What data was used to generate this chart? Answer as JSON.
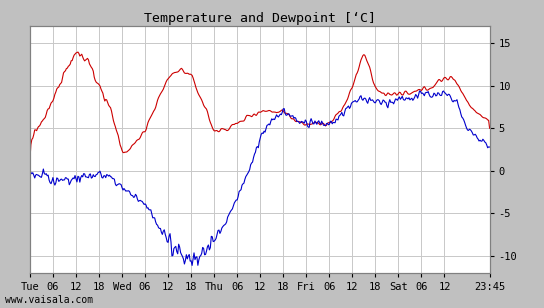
{
  "title": "Temperature and Dewpoint [‘C]",
  "bg_color": "#c0c0c0",
  "plot_bg_color": "#ffffff",
  "grid_color": "#c8c8c8",
  "temp_color": "#cc0000",
  "dewp_color": "#0000cc",
  "line_width": 0.8,
  "ylim": [
    -12,
    17
  ],
  "yticks": [
    -10,
    -5,
    0,
    5,
    10,
    15
  ],
  "xtick_labels": [
    "Tue",
    "06",
    "12",
    "18",
    "Wed",
    "06",
    "12",
    "18",
    "Thu",
    "06",
    "12",
    "18",
    "Fri",
    "06",
    "12",
    "18",
    "Sat",
    "06",
    "12",
    "23:45"
  ],
  "xtick_pos": [
    0,
    6,
    12,
    18,
    24,
    30,
    36,
    42,
    48,
    54,
    60,
    66,
    72,
    78,
    84,
    90,
    96,
    102,
    108,
    119.75
  ],
  "watermark": "www.vaisala.com",
  "title_fontsize": 9.5,
  "tick_fontsize": 7.5,
  "watermark_fontsize": 7,
  "temp_key_times": [
    0,
    3,
    6,
    9,
    12,
    15,
    18,
    21,
    24,
    27,
    30,
    33,
    36,
    39,
    42,
    45,
    48,
    51,
    54,
    57,
    60,
    63,
    66,
    69,
    72,
    75,
    78,
    81,
    84,
    87,
    90,
    93,
    96,
    99,
    102,
    105,
    108,
    111,
    114,
    117,
    119.75
  ],
  "temp_key_vals": [
    3.5,
    5.5,
    8.5,
    12,
    14,
    13,
    10,
    7,
    2,
    3,
    5,
    8,
    11,
    12,
    11,
    8,
    4.5,
    5,
    5.5,
    6.5,
    7,
    7,
    7,
    6,
    5.5,
    5.5,
    5.5,
    7,
    10,
    14,
    9.5,
    9,
    9,
    9,
    9.5,
    10,
    11,
    10.5,
    8,
    6.5,
    6
  ],
  "dew_key_times": [
    0,
    3,
    6,
    9,
    12,
    15,
    18,
    21,
    24,
    27,
    30,
    33,
    36,
    39,
    42,
    45,
    48,
    51,
    54,
    57,
    60,
    63,
    66,
    69,
    72,
    75,
    78,
    81,
    84,
    87,
    90,
    93,
    96,
    99,
    102,
    105,
    108,
    111,
    114,
    117,
    119.75
  ],
  "dew_key_vals": [
    -0.5,
    -0.5,
    -1,
    -1,
    -1,
    -0.5,
    -0.5,
    -1,
    -2,
    -3,
    -4,
    -6,
    -8,
    -10,
    -10.5,
    -10,
    -8,
    -6,
    -3,
    0,
    4,
    6,
    7,
    6,
    5.5,
    5.5,
    5.5,
    6.5,
    8,
    8.5,
    8,
    8,
    8.5,
    8.5,
    9,
    9,
    9,
    8,
    5,
    3.5,
    3
  ]
}
